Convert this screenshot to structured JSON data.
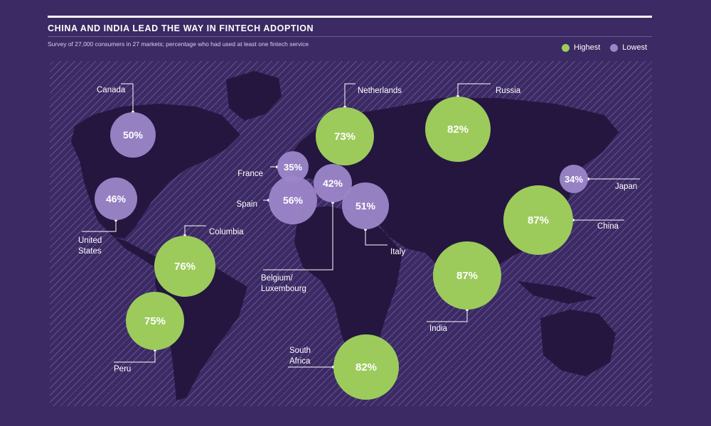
{
  "header": {
    "title": "CHINA AND INDIA LEAD THE WAY IN FINTECH ADOPTION",
    "subtitle": "Survey of 27,000 consumers in 27 markets; percentage who had used at least one fintech service"
  },
  "legend": [
    {
      "label": "Highest",
      "color": "#9ccb5c"
    },
    {
      "label": "Lowest",
      "color": "#9c86c9"
    }
  ],
  "colors": {
    "background": "#3b2a63",
    "land": "#24163f",
    "highest": "#9ccb5c",
    "lowest": "#9c86c9",
    "text": "#ffffff"
  },
  "markets": [
    {
      "country": "Canada",
      "value": "50%",
      "group": "lowest"
    },
    {
      "country": "United States",
      "value": "46%",
      "group": "lowest"
    },
    {
      "country": "Columbia",
      "value": "76%",
      "group": "highest"
    },
    {
      "country": "Peru",
      "value": "75%",
      "group": "highest"
    },
    {
      "country": "France",
      "value": "35%",
      "group": "lowest"
    },
    {
      "country": "Spain",
      "value": "56%",
      "group": "lowest"
    },
    {
      "country": "Belgium/ Luxembourg",
      "value": "42%",
      "group": "lowest"
    },
    {
      "country": "Netherlands",
      "value": "73%",
      "group": "highest"
    },
    {
      "country": "Italy",
      "value": "51%",
      "group": "lowest"
    },
    {
      "country": "Russia",
      "value": "82%",
      "group": "highest"
    },
    {
      "country": "Japan",
      "value": "34%",
      "group": "lowest"
    },
    {
      "country": "China",
      "value": "87%",
      "group": "highest"
    },
    {
      "country": "India",
      "value": "87%",
      "group": "highest"
    },
    {
      "country": "South Africa",
      "value": "82%",
      "group": "highest"
    }
  ]
}
